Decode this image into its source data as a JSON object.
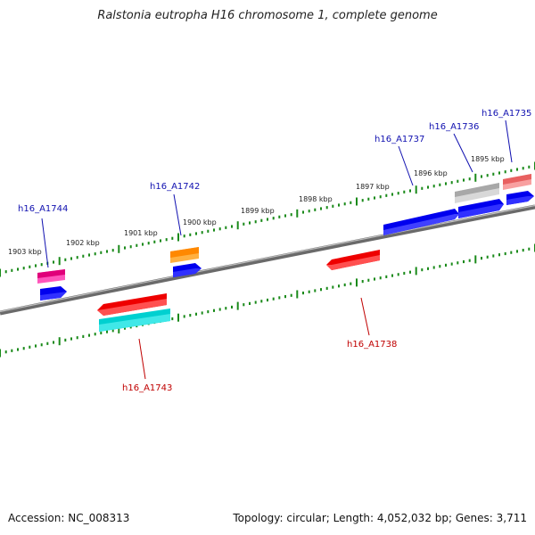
{
  "title": "Ralstonia eutropha H16 chromosome 1, complete genome",
  "footer": {
    "accession": "Accession: NC_008313",
    "summary": "Topology: circular; Length: 4,052,032 bp; Genes: 3,711"
  },
  "kbp_labels": [
    "1903 kbp",
    "1902 kbp",
    "1901 kbp",
    "1900 kbp",
    "1899 kbp",
    "1898 kbp",
    "1897 kbp",
    "1896 kbp",
    "1895 kbp"
  ],
  "colors": {
    "backbone": "#808080",
    "tick": "#1a8a1a",
    "forward_label": "#1010b0",
    "reverse_label": "#c00000",
    "red": "#ee0000",
    "blue": "#0000ee",
    "cyan": "#00c0c0",
    "magenta": "#ee1090",
    "orange": "#ff9000",
    "grey": "#b0b0b0",
    "pink": "#f07070"
  },
  "genes": [
    {
      "label": "h16_A1744",
      "strand": "forward",
      "color": "magenta"
    },
    {
      "label": "h16_A1742",
      "strand": "forward",
      "color": "orange"
    },
    {
      "label": "h16_A1737",
      "strand": "forward",
      "color": "blue"
    },
    {
      "label": "h16_A1736",
      "strand": "forward",
      "color": "grey"
    },
    {
      "label": "h16_A1735",
      "strand": "forward",
      "color": "pink"
    },
    {
      "label": "h16_A1743",
      "strand": "reverse",
      "color": "cyan"
    },
    {
      "label": "h16_A1738",
      "strand": "reverse",
      "color": "red"
    }
  ]
}
